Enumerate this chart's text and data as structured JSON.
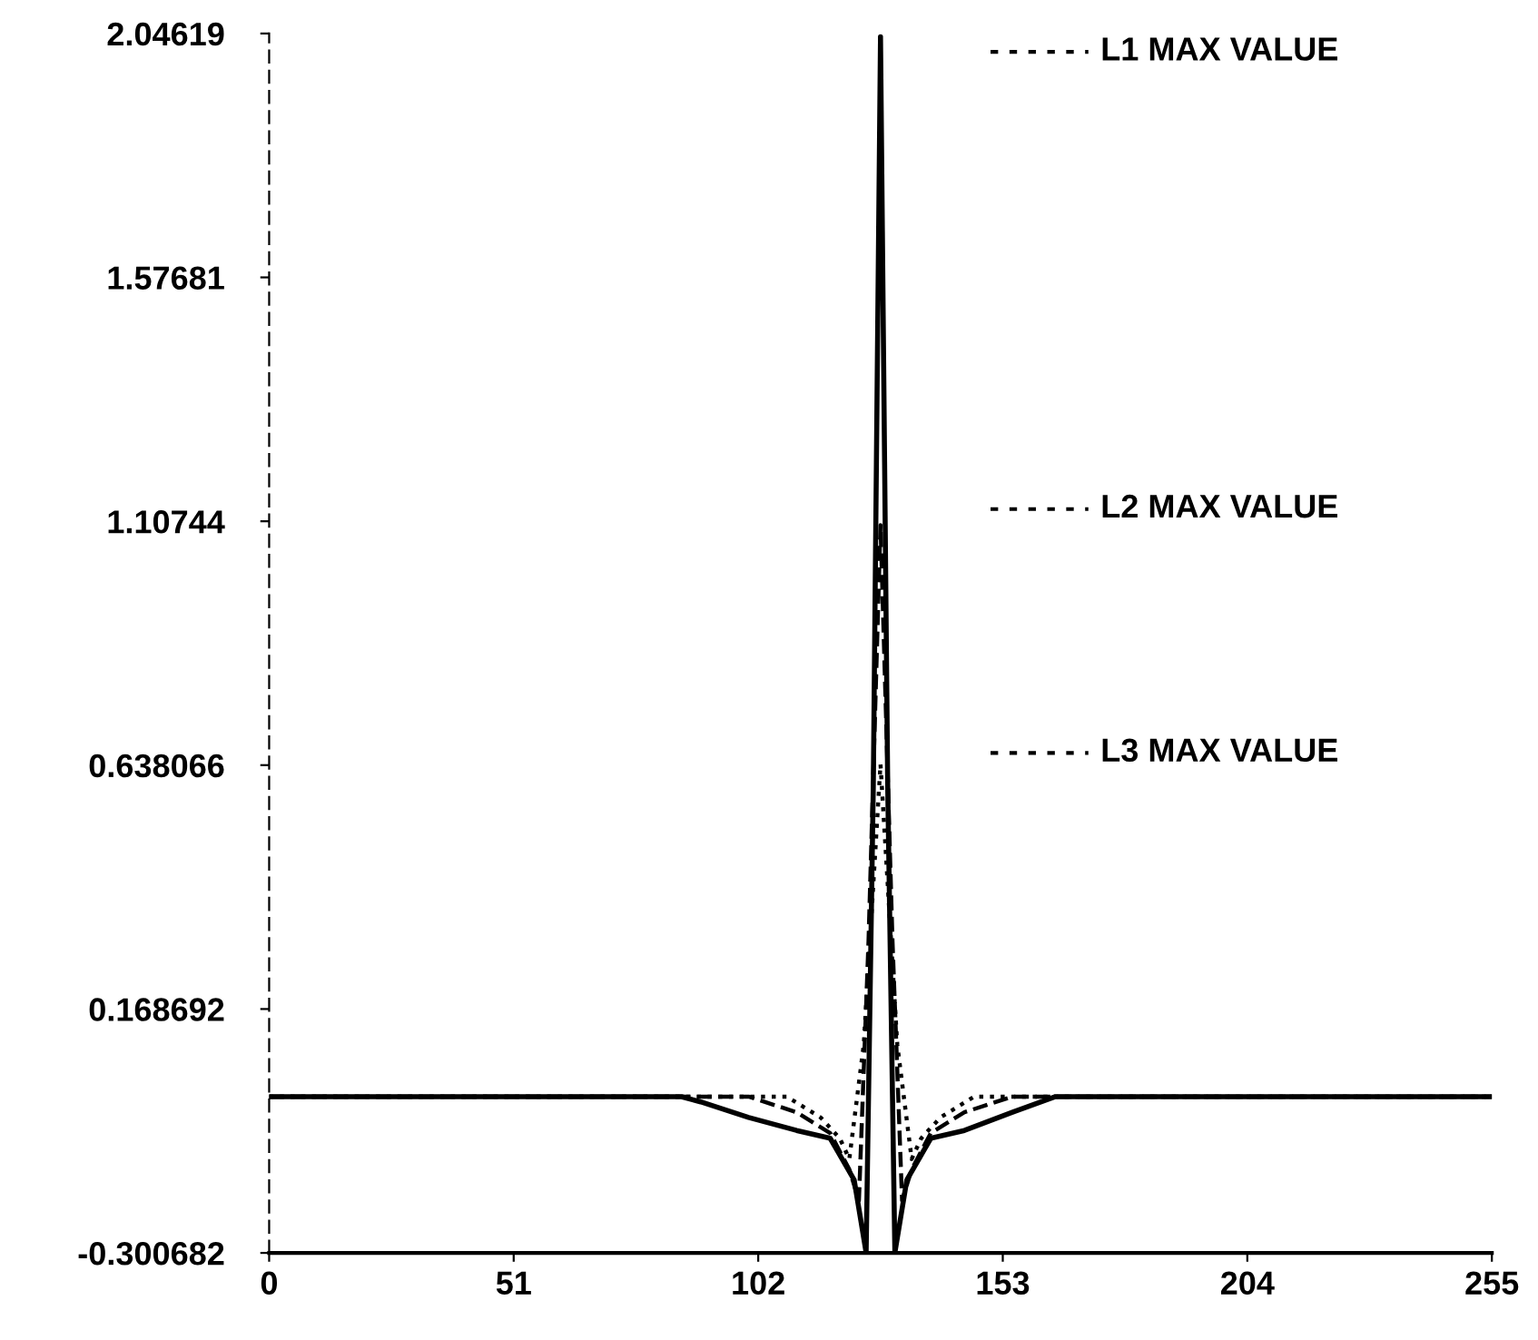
{
  "chart_data": {
    "type": "line",
    "xlim": [
      0,
      255
    ],
    "ylim": [
      -0.300682,
      2.04619
    ],
    "xticks": [
      0,
      51,
      102,
      153,
      204,
      255
    ],
    "yticks": [
      -0.300682,
      0.168692,
      0.638066,
      1.10744,
      1.57681,
      2.04619
    ],
    "legend": false,
    "grid": false,
    "marker": "none",
    "series": [
      {
        "color": "#000000",
        "line_style": "solid",
        "x": [
          0,
          86,
          90,
          100,
          110,
          117,
          122,
          124.5,
          126,
          127.5,
          129,
          130.5,
          133,
          138,
          145,
          155,
          164,
          255
        ],
        "values": [
          0,
          0,
          -0.01,
          -0.04,
          -0.065,
          -0.08,
          -0.16,
          -0.3,
          0.6,
          2.04,
          0.6,
          -0.3,
          -0.16,
          -0.08,
          -0.065,
          -0.03,
          0,
          0
        ]
      },
      {
        "color": "#000000",
        "line_style": "dashed",
        "x": [
          0,
          100,
          110,
          117,
          121,
          123,
          125,
          127.5,
          130,
          132,
          134,
          138,
          145,
          155,
          255
        ],
        "values": [
          0,
          0,
          -0.03,
          -0.07,
          -0.14,
          -0.2,
          0.3,
          1.1,
          0.3,
          -0.2,
          -0.14,
          -0.07,
          -0.03,
          0,
          0
        ]
      },
      {
        "color": "#000000",
        "line_style": "dotted",
        "x": [
          0,
          108,
          115,
          119,
          121,
          124,
          127.5,
          131,
          134,
          136,
          140,
          147,
          255
        ],
        "values": [
          0,
          0,
          -0.04,
          -0.08,
          -0.12,
          0.1,
          0.64,
          0.1,
          -0.12,
          -0.08,
          -0.04,
          0,
          0
        ]
      }
    ],
    "annotations": [
      "L1 MAX VALUE",
      "L2 MAX VALUE",
      "L3 MAX VALUE"
    ]
  }
}
